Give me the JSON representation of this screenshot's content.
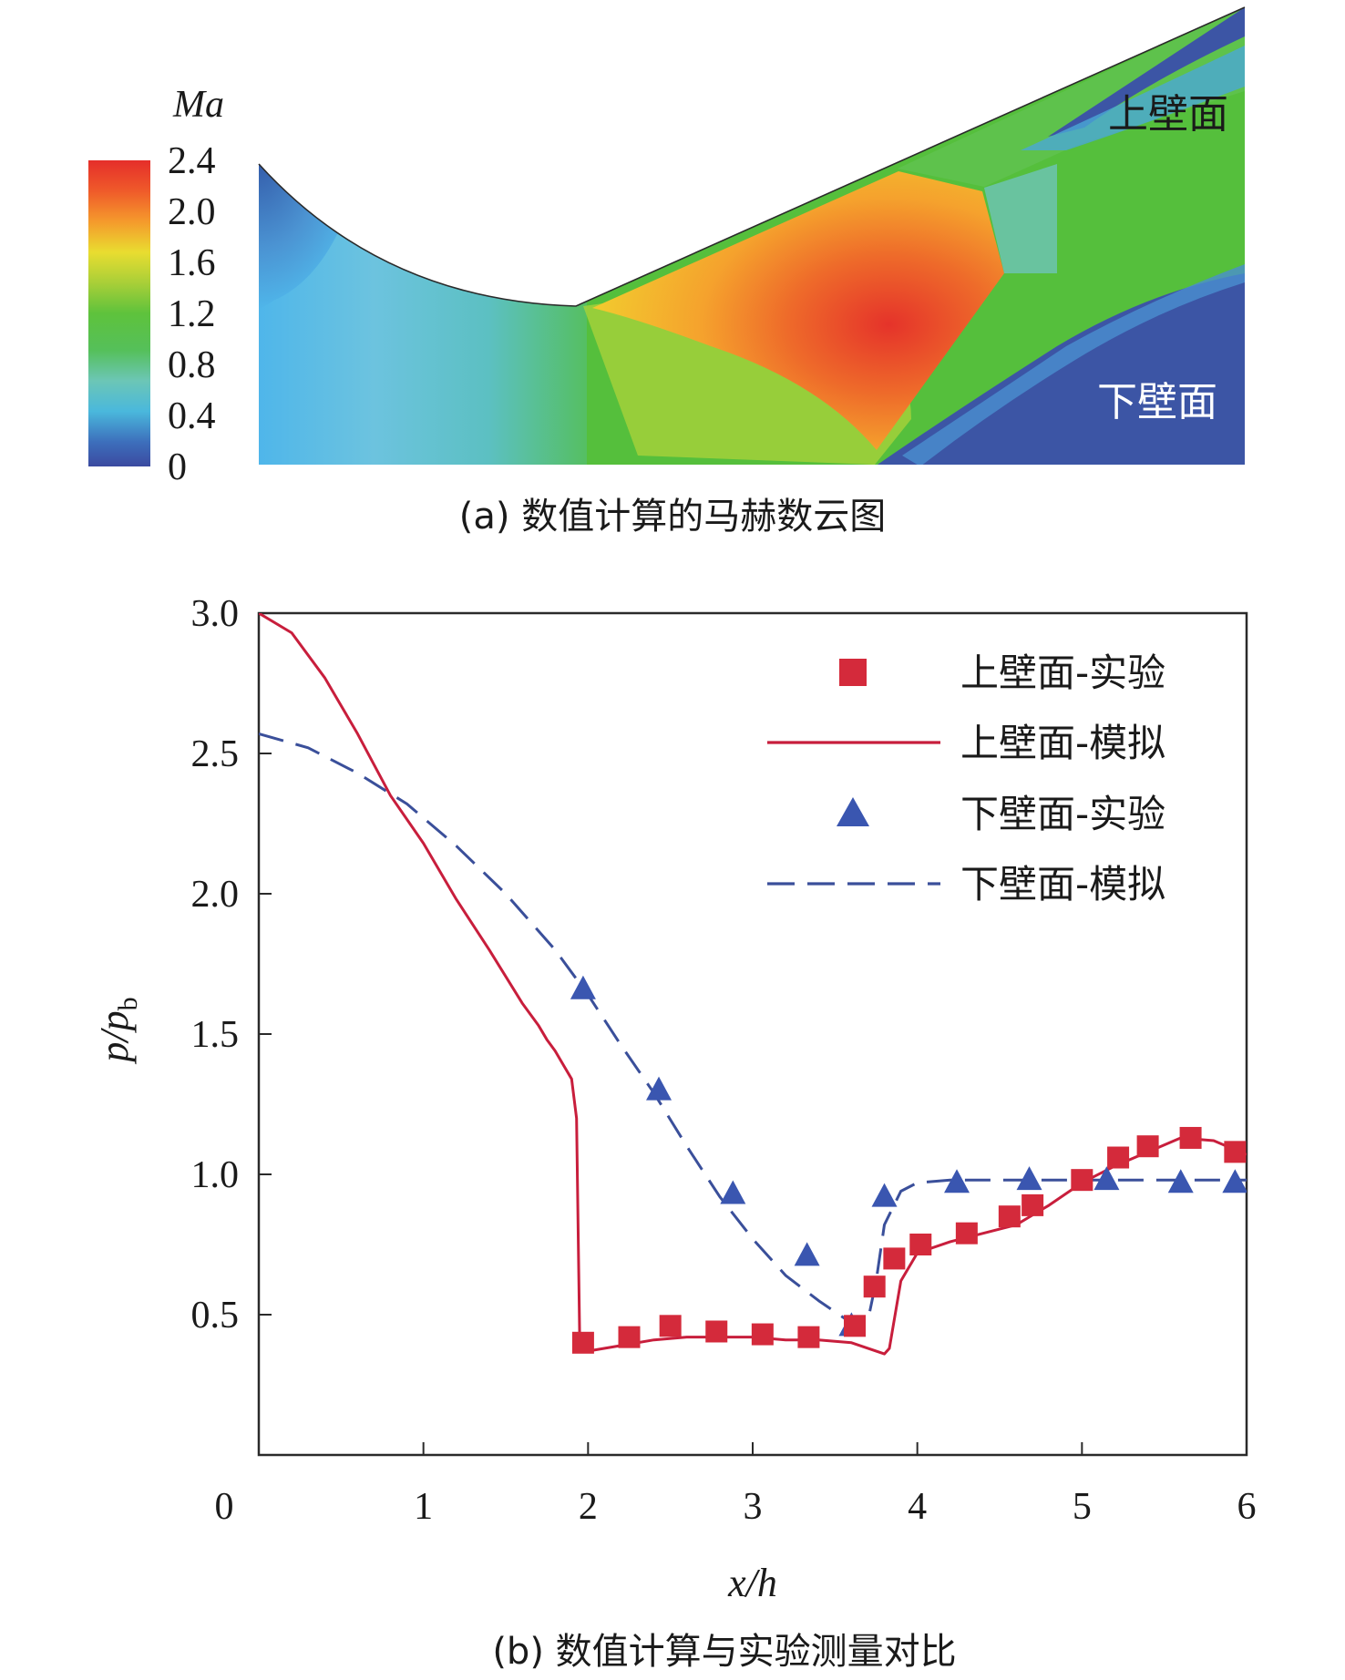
{
  "panel_a": {
    "caption": "(a) 数值计算的马赫数云图",
    "colorbar_title": "Ma",
    "colorbar_ticks": [
      "2.4",
      "2.0",
      "1.6",
      "1.2",
      "0.8",
      "0.4",
      "0"
    ],
    "colorbar_values": [
      2.4,
      2.0,
      1.6,
      1.2,
      0.8,
      0.4,
      0
    ],
    "label_upper": "上壁面",
    "label_lower": "下壁面",
    "colors": {
      "deep_blue": "#3c55a5",
      "light_blue": "#5ab4e6",
      "cyan": "#6dc8d8",
      "green": "#58c23a",
      "yellow": "#e8d12b",
      "orange": "#f3922a",
      "red": "#e63a28"
    }
  },
  "chart_data": {
    "type": "line",
    "caption": "(b) 数值计算与实验测量对比",
    "xlabel": "x/h",
    "ylabel_main": "p/p",
    "ylabel_sub": "b",
    "xlim": [
      0,
      6
    ],
    "ylim": [
      0,
      3.0
    ],
    "x_ticks": [
      "0",
      "1",
      "2",
      "3",
      "4",
      "5",
      "6"
    ],
    "y_ticks": [
      "0.5",
      "1.0",
      "1.5",
      "2.0",
      "2.5",
      "3.0"
    ],
    "legend_position": "top-right",
    "series": [
      {
        "name": "上壁面-实验",
        "kind": "scatter-square",
        "color": "#d42a3b",
        "x": [
          1.97,
          2.25,
          2.5,
          2.78,
          3.06,
          3.34,
          3.62,
          3.74,
          3.86,
          4.02,
          4.3,
          4.56,
          4.7,
          5.0,
          5.22,
          5.4,
          5.66,
          5.93
        ],
        "y": [
          0.4,
          0.42,
          0.46,
          0.44,
          0.43,
          0.42,
          0.46,
          0.6,
          0.7,
          0.75,
          0.79,
          0.85,
          0.89,
          0.98,
          1.06,
          1.1,
          1.13,
          1.08
        ]
      },
      {
        "name": "上壁面-模拟",
        "kind": "line-solid",
        "color": "#c81e3c",
        "x": [
          0,
          0.2,
          0.4,
          0.6,
          0.8,
          1.0,
          1.2,
          1.4,
          1.6,
          1.7,
          1.75,
          1.8,
          1.85,
          1.9,
          1.93,
          1.95,
          2.0,
          2.2,
          2.4,
          2.6,
          2.8,
          3.0,
          3.2,
          3.4,
          3.6,
          3.8,
          3.83,
          3.9,
          4.0,
          4.2,
          4.4,
          4.6,
          4.8,
          5.0,
          5.2,
          5.4,
          5.6,
          5.8,
          6.0
        ],
        "y": [
          3.0,
          2.93,
          2.77,
          2.57,
          2.35,
          2.18,
          1.98,
          1.8,
          1.61,
          1.53,
          1.48,
          1.44,
          1.39,
          1.34,
          1.2,
          0.38,
          0.37,
          0.39,
          0.41,
          0.42,
          0.42,
          0.42,
          0.41,
          0.41,
          0.4,
          0.36,
          0.38,
          0.62,
          0.72,
          0.76,
          0.79,
          0.82,
          0.89,
          0.97,
          1.03,
          1.08,
          1.13,
          1.12,
          1.07
        ]
      },
      {
        "name": "下壁面-实验",
        "kind": "scatter-triangle",
        "color": "#3a56b0",
        "x": [
          1.97,
          2.43,
          2.88,
          3.33,
          3.6,
          3.8,
          4.24,
          4.68,
          5.15,
          5.6,
          5.93
        ],
        "y": [
          1.66,
          1.3,
          0.93,
          0.71,
          0.46,
          0.92,
          0.97,
          0.98,
          0.98,
          0.97,
          0.97
        ]
      },
      {
        "name": "下壁面-模拟",
        "kind": "line-dashed",
        "color": "#3a4f9a",
        "x": [
          0,
          0.3,
          0.6,
          0.9,
          1.2,
          1.5,
          1.8,
          2.0,
          2.2,
          2.4,
          2.6,
          2.8,
          3.0,
          3.2,
          3.4,
          3.6,
          3.7,
          3.75,
          3.8,
          3.9,
          4.0,
          4.2,
          4.5,
          5.0,
          5.5,
          6.0
        ],
        "y": [
          2.57,
          2.52,
          2.43,
          2.32,
          2.17,
          2.0,
          1.8,
          1.64,
          1.46,
          1.29,
          1.1,
          0.92,
          0.77,
          0.64,
          0.55,
          0.47,
          0.48,
          0.62,
          0.82,
          0.94,
          0.97,
          0.98,
          0.98,
          0.98,
          0.98,
          0.98
        ]
      }
    ]
  }
}
